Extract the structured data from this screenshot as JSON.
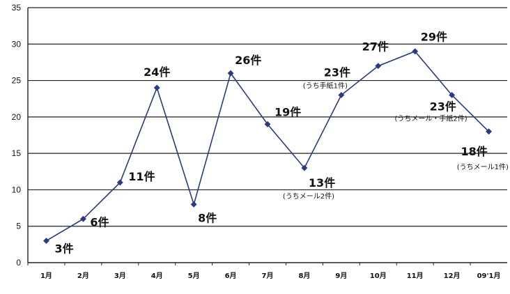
{
  "chart_data": {
    "type": "line",
    "categories": [
      "1月",
      "2月",
      "3月",
      "4月",
      "5月",
      "6月",
      "7月",
      "8月",
      "9月",
      "10月",
      "11月",
      "12月",
      "09'1月"
    ],
    "values": [
      3,
      6,
      11,
      24,
      8,
      26,
      19,
      13,
      23,
      27,
      29,
      23,
      18
    ],
    "data_labels": [
      "3件",
      "6件",
      "11件",
      "24件",
      "8件",
      "26件",
      "19件",
      "13件",
      "23件",
      "27件",
      "29件",
      "23件",
      "18件"
    ],
    "notes": [
      "",
      "",
      "",
      "",
      "",
      "",
      "",
      "(うちメール2件)",
      "(うち手紙1件)",
      "",
      "",
      "(うちメール・手紙2件)",
      "(うちメール1件)"
    ],
    "ylim": [
      0,
      35
    ],
    "yticks": [
      0,
      5,
      10,
      15,
      20,
      25,
      30,
      35
    ],
    "grid": true,
    "line_color": "#2c3a80",
    "marker_color": "#2c3a80"
  }
}
